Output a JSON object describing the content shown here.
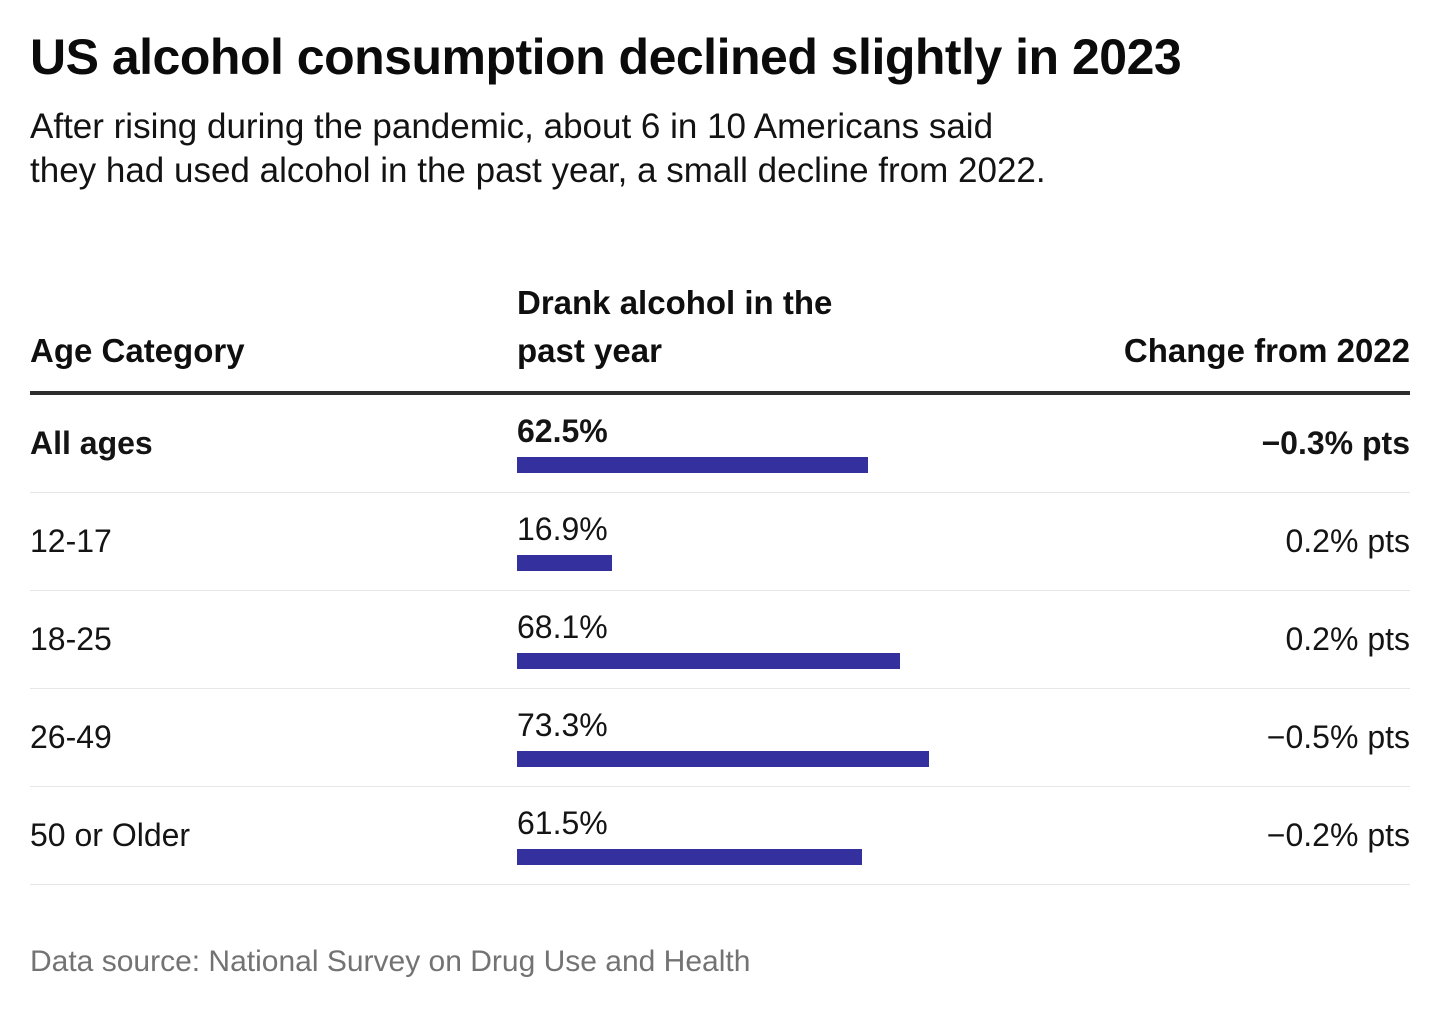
{
  "header": {
    "title": "US alcohol consumption declined slightly in 2023",
    "subtitle_lines": [
      "After rising during the pandemic, about 6 in 10 Americans said",
      "they had used alcohol in the past year, a small decline from 2022."
    ]
  },
  "table": {
    "columns": [
      "Age Category",
      "Drank alcohol in the past year",
      "Change from 2022"
    ],
    "rows": [
      {
        "age": "All ages",
        "value": "62.5%",
        "change": "−0.3% pts"
      },
      {
        "age": "12-17",
        "value": "16.9%",
        "change": "0.2% pts"
      },
      {
        "age": "18-25",
        "value": "68.1%",
        "change": "0.2% pts"
      },
      {
        "age": "26-49",
        "value": "73.3%",
        "change": "−0.5% pts"
      },
      {
        "age": "50 or Older",
        "value": "61.5%",
        "change": "−0.2% pts"
      }
    ]
  },
  "footer": {
    "source": "Data source: National Survey on Drug Use and Health"
  },
  "colors": {
    "bar": "#34309e",
    "header_rule": "#2d2d2d",
    "row_divider": "#e7e7e7",
    "text": "#131313",
    "muted": "#737373"
  },
  "chart_data": {
    "type": "bar",
    "orientation": "horizontal",
    "title": "US alcohol consumption declined slightly in 2023",
    "subtitle": "After rising during the pandemic, about 6 in 10 Americans said they had used alcohol in the past year, a small decline from 2022.",
    "categories": [
      "All ages",
      "12-17",
      "18-25",
      "26-49",
      "50 or Older"
    ],
    "series": [
      {
        "name": "Drank alcohol in the past year (%)",
        "values": [
          62.5,
          16.9,
          68.1,
          73.3,
          61.5
        ]
      },
      {
        "name": "Change from 2022 (% pts)",
        "values": [
          -0.3,
          0.2,
          0.2,
          -0.5,
          -0.2
        ]
      }
    ],
    "xlabel": "",
    "ylabel": "Age Category",
    "xlim": [
      0,
      100
    ],
    "grid": false,
    "legend_position": "none",
    "source": "Data source: National Survey on Drug Use and Health"
  }
}
